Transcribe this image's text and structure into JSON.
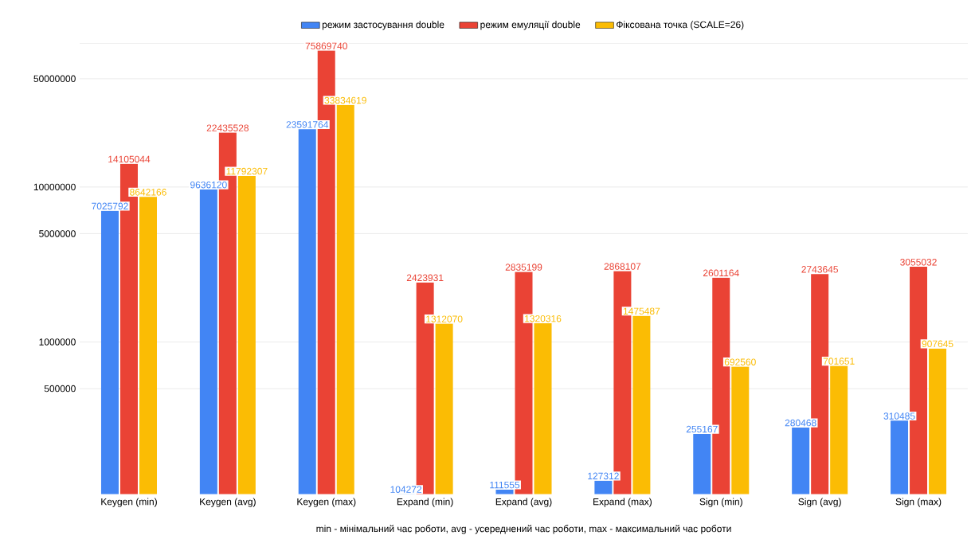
{
  "chart_data": {
    "type": "bar",
    "xlabel": "min - мінімальний час роботи, avg - усереднений час роботи, max - максимальний час роботи",
    "categories": [
      "Keygen (min)",
      "Keygen (avg)",
      "Keygen (max)",
      "Expand (min)",
      "Expand (avg)",
      "Expand (max)",
      "Sign (min)",
      "Sign (avg)",
      "Sign (max)"
    ],
    "series": [
      {
        "name": "режим застосування double",
        "color": "#4285f4",
        "values": [
          7025792,
          9636120,
          23591764,
          104272,
          111555,
          127312,
          255167,
          280468,
          310485
        ]
      },
      {
        "name": "режим емуляції double",
        "color": "#ea4335",
        "values": [
          14105044,
          22435528,
          75869740,
          2423931,
          2835199,
          2868107,
          2601164,
          2743645,
          3055032
        ]
      },
      {
        "name": "Фіксована точка (SCALE=26)",
        "color": "#fbbc04",
        "values": [
          8642166,
          11792307,
          33834619,
          1312070,
          1320316,
          1475487,
          692560,
          701651,
          907645
        ]
      }
    ],
    "log": "y",
    "ylim": [
      104000,
      85000000
    ],
    "yticks": [
      500000,
      1000000,
      5000000,
      10000000,
      50000000
    ],
    "grid": "y",
    "legend": "top",
    "data_labels": true
  }
}
